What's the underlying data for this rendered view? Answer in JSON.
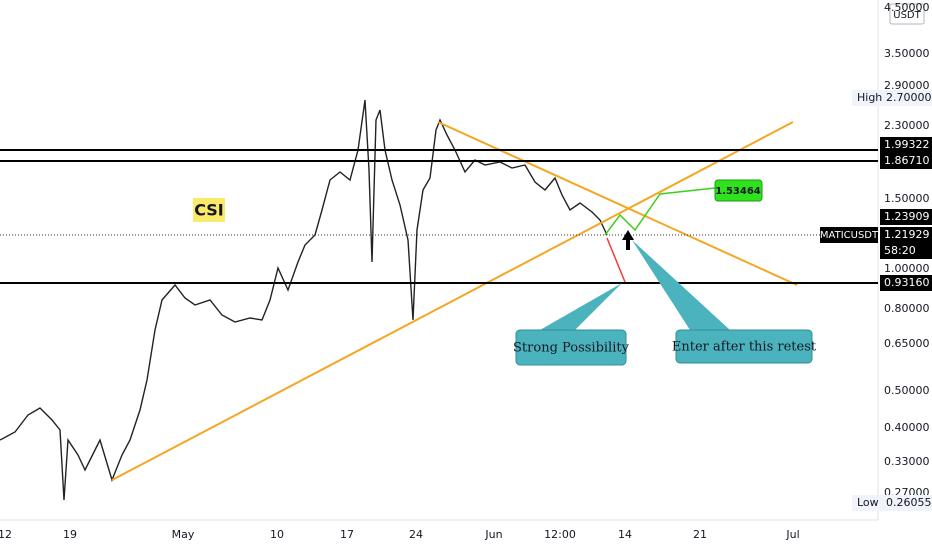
{
  "price_axis": {
    "unit": "USDT",
    "labels": [
      "4.50000",
      "3.50000",
      "2.90000",
      "2.30000",
      "1.50000",
      "1.00000",
      "0.80000",
      "0.65000",
      "0.50000",
      "0.40000",
      "0.33000",
      "0.27000"
    ],
    "high": {
      "label": "High",
      "value": "2.70000"
    },
    "low": {
      "label": "Low",
      "value": "0.26055"
    },
    "level_tags": [
      "1.99322",
      "1.86710",
      "1.23909",
      "0.93160"
    ],
    "symbol_tag": "MATICUSDT",
    "last_price": "1.21929",
    "countdown": "58:20"
  },
  "time_axis": {
    "labels": [
      "12",
      "19",
      "May",
      "10",
      "17",
      "24",
      "Jun",
      "12:00",
      "14",
      "21",
      "Jul"
    ]
  },
  "annotations": {
    "watermark": "CSI",
    "target": "1.53464",
    "callout_1": "Strong Possibility",
    "callout_2": "Enter after this retest"
  }
}
